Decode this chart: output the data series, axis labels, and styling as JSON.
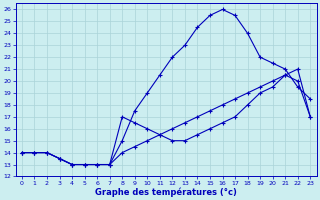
{
  "title": "Graphe des températures (°c)",
  "bg_color": "#cceef0",
  "grid_color": "#aad4d8",
  "line_color": "#0000bb",
  "xlim": [
    -0.5,
    23.5
  ],
  "ylim": [
    12,
    26.5
  ],
  "xticks": [
    0,
    1,
    2,
    3,
    4,
    5,
    6,
    7,
    8,
    9,
    10,
    11,
    12,
    13,
    14,
    15,
    16,
    17,
    18,
    19,
    20,
    21,
    22,
    23
  ],
  "yticks": [
    12,
    13,
    14,
    15,
    16,
    17,
    18,
    19,
    20,
    21,
    22,
    23,
    24,
    25,
    26
  ],
  "line_upper_x": [
    0,
    1,
    2,
    3,
    4,
    5,
    6,
    7,
    8,
    9,
    10,
    11,
    12,
    13,
    14,
    15,
    16,
    17,
    18,
    19,
    20,
    21,
    22,
    23
  ],
  "line_upper_y": [
    14.0,
    14.0,
    14.0,
    13.5,
    13.0,
    13.0,
    13.0,
    13.0,
    15.0,
    17.5,
    19.0,
    20.5,
    22.0,
    23.0,
    24.5,
    25.5,
    26.0,
    25.5,
    24.0,
    22.0,
    21.5,
    21.0,
    19.5,
    18.5
  ],
  "line_mid_x": [
    0,
    1,
    2,
    3,
    4,
    5,
    6,
    7,
    8,
    9,
    10,
    11,
    12,
    13,
    14,
    15,
    16,
    17,
    18,
    19,
    20,
    21,
    22,
    23
  ],
  "line_mid_y": [
    14.0,
    14.0,
    14.0,
    13.5,
    13.0,
    13.0,
    13.0,
    13.0,
    14.0,
    14.5,
    15.0,
    15.5,
    16.0,
    16.5,
    17.0,
    17.5,
    18.0,
    18.5,
    19.0,
    19.5,
    20.0,
    20.5,
    21.0,
    17.0
  ],
  "line_low_x": [
    0,
    1,
    2,
    3,
    4,
    5,
    6,
    7,
    8,
    9,
    10,
    11,
    12,
    13,
    14,
    15,
    16,
    17,
    18,
    19,
    20,
    21,
    22,
    23
  ],
  "line_low_y": [
    14.0,
    14.0,
    14.0,
    13.5,
    13.0,
    13.0,
    13.0,
    13.0,
    17.0,
    16.5,
    16.0,
    15.5,
    15.0,
    15.0,
    15.5,
    16.0,
    16.5,
    17.0,
    18.0,
    19.0,
    19.5,
    20.5,
    20.0,
    17.0
  ]
}
